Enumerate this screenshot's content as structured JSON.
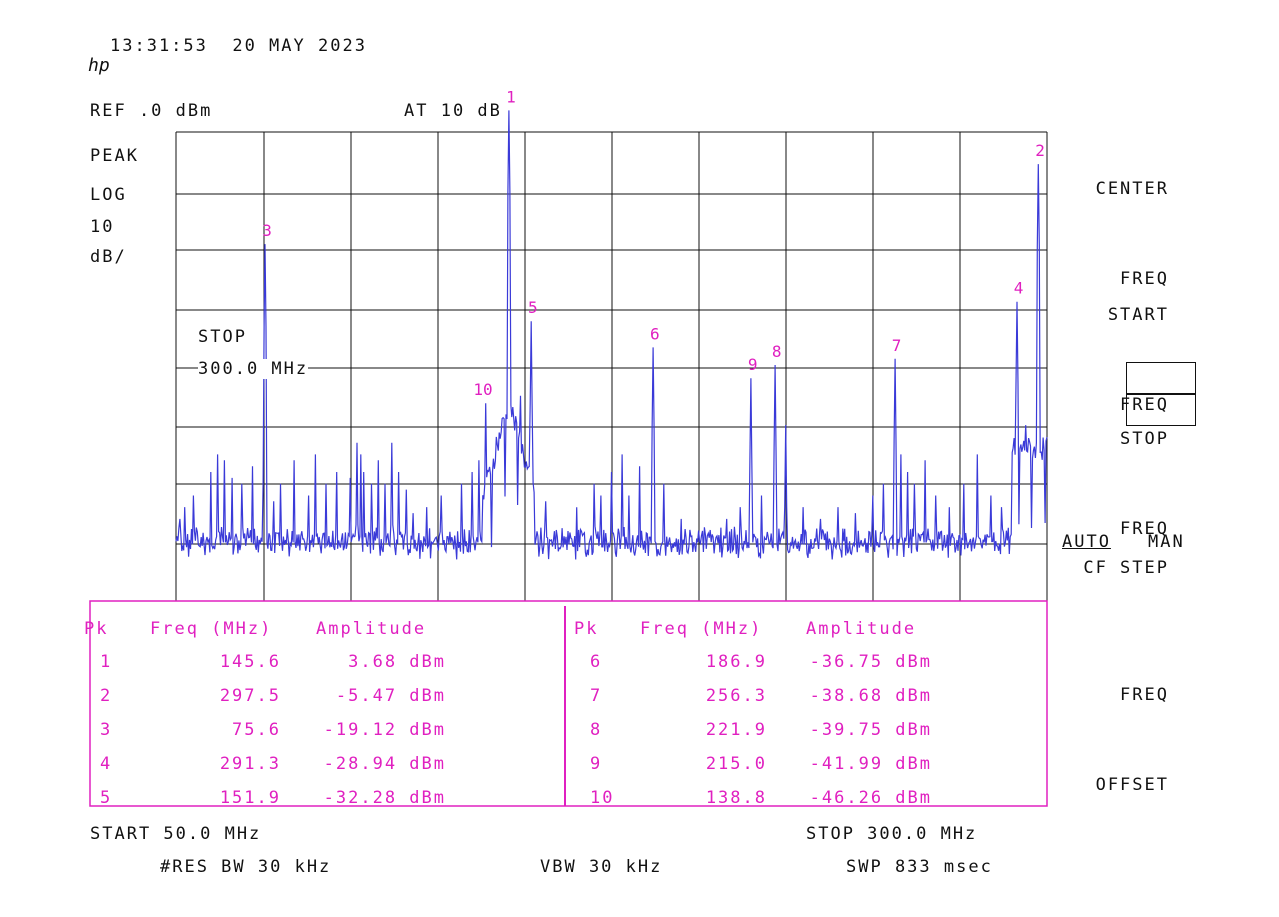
{
  "header": {
    "datetime": "13:31:53  20 MAY 2023",
    "logo": "hp",
    "ref_level": "REF .0 dBm",
    "attenuation": "AT 10 dB",
    "detector": "PEAK",
    "scale_mode": "LOG",
    "scale_value": "10",
    "scale_unit": "dB/"
  },
  "active_function": {
    "label": "STOP",
    "value": "300.0 MHz"
  },
  "softkeys": {
    "center_freq": [
      "CENTER",
      "FREQ"
    ],
    "start_freq": [
      "START",
      "FREQ"
    ],
    "stop_freq": [
      "STOP",
      "FREQ"
    ],
    "cf_step": "CF STEP",
    "cf_auto": "AUTO",
    "cf_man": "MAN",
    "freq_offset": [
      "FREQ",
      "OFFSET"
    ]
  },
  "footer": {
    "start": "START 50.0 MHz",
    "stop": "STOP 300.0 MHz",
    "res_bw": "#RES BW 30 kHz",
    "vbw": "VBW 30 kHz",
    "sweep": "SWP 833 msec"
  },
  "peak_table": {
    "headers": {
      "pk": "Pk",
      "freq": "Freq (MHz)",
      "amp": "Amplitude"
    },
    "rows": [
      {
        "pk": "1",
        "freq": "145.6",
        "amp": "3.68 dBm"
      },
      {
        "pk": "2",
        "freq": "297.5",
        "amp": "-5.47 dBm"
      },
      {
        "pk": "3",
        "freq": "75.6",
        "amp": "-19.12 dBm"
      },
      {
        "pk": "4",
        "freq": "291.3",
        "amp": "-28.94 dBm"
      },
      {
        "pk": "5",
        "freq": "151.9",
        "amp": "-32.28 dBm"
      },
      {
        "pk": "6",
        "freq": "186.9",
        "amp": "-36.75 dBm"
      },
      {
        "pk": "7",
        "freq": "256.3",
        "amp": "-38.68 dBm"
      },
      {
        "pk": "8",
        "freq": "221.9",
        "amp": "-39.75 dBm"
      },
      {
        "pk": "9",
        "freq": "215.0",
        "amp": "-41.99 dBm"
      },
      {
        "pk": "10",
        "freq": "138.8",
        "amp": "-46.26 dBm"
      }
    ]
  },
  "chart_data": {
    "type": "line",
    "x_range_mhz": [
      50,
      300
    ],
    "y_range_dbm": [
      -80,
      0
    ],
    "grid": true,
    "trace_color": "#3a3ad8",
    "marker_color": "#e020c0",
    "noise_floor_dbm": -69,
    "peaks": [
      {
        "label": "1",
        "freq_mhz": 145.6,
        "amp_dbm": 3.68
      },
      {
        "label": "2",
        "freq_mhz": 297.5,
        "amp_dbm": -5.47
      },
      {
        "label": "3",
        "freq_mhz": 75.6,
        "amp_dbm": -19.12
      },
      {
        "label": "4",
        "freq_mhz": 291.3,
        "amp_dbm": -28.94
      },
      {
        "label": "5",
        "freq_mhz": 151.9,
        "amp_dbm": -32.28
      },
      {
        "label": "6",
        "freq_mhz": 186.9,
        "amp_dbm": -36.75
      },
      {
        "label": "7",
        "freq_mhz": 256.3,
        "amp_dbm": -38.68
      },
      {
        "label": "8",
        "freq_mhz": 221.9,
        "amp_dbm": -39.75
      },
      {
        "label": "9",
        "freq_mhz": 215.0,
        "amp_dbm": -41.99
      },
      {
        "label": "10",
        "freq_mhz": 138.8,
        "amp_dbm": -46.26
      }
    ],
    "minor_spurs": [
      [
        51,
        -66
      ],
      [
        52.5,
        -64
      ],
      [
        55,
        -62
      ],
      [
        60,
        -58
      ],
      [
        62,
        -55
      ],
      [
        64,
        -56
      ],
      [
        66,
        -59
      ],
      [
        69,
        -60
      ],
      [
        72,
        -57
      ],
      [
        75,
        -60
      ],
      [
        78,
        -63
      ],
      [
        80,
        -60
      ],
      [
        84,
        -56
      ],
      [
        88,
        -62
      ],
      [
        90,
        -55
      ],
      [
        93,
        -60
      ],
      [
        96,
        -58
      ],
      [
        100,
        -59
      ],
      [
        102,
        -53
      ],
      [
        103,
        -55
      ],
      [
        104,
        -58
      ],
      [
        106,
        -60
      ],
      [
        108,
        -56
      ],
      [
        110,
        -60
      ],
      [
        112,
        -53
      ],
      [
        114,
        -58
      ],
      [
        116,
        -61
      ],
      [
        118,
        -65
      ],
      [
        122,
        -64
      ],
      [
        126,
        -62
      ],
      [
        132,
        -60
      ],
      [
        135,
        -58
      ],
      [
        137,
        -56
      ],
      [
        142,
        -52
      ],
      [
        149,
        -45
      ],
      [
        156,
        -63
      ],
      [
        165,
        -64
      ],
      [
        170,
        -60
      ],
      [
        172,
        -62
      ],
      [
        175,
        -58
      ],
      [
        178,
        -55
      ],
      [
        180,
        -62
      ],
      [
        183,
        -57
      ],
      [
        190,
        -60
      ],
      [
        195,
        -66
      ],
      [
        200,
        -68
      ],
      [
        208,
        -66
      ],
      [
        212,
        -64
      ],
      [
        218,
        -62
      ],
      [
        225,
        -50
      ],
      [
        230,
        -64
      ],
      [
        235,
        -66
      ],
      [
        240,
        -64
      ],
      [
        245,
        -65
      ],
      [
        250,
        -62
      ],
      [
        253,
        -60
      ],
      [
        258,
        -55
      ],
      [
        260,
        -58
      ],
      [
        262,
        -60
      ],
      [
        265,
        -56
      ],
      [
        268,
        -62
      ],
      [
        272,
        -64
      ],
      [
        276,
        -60
      ],
      [
        280,
        -55
      ],
      [
        284,
        -62
      ],
      [
        287,
        -64
      ],
      [
        294,
        -50
      ],
      [
        299,
        -58
      ]
    ]
  }
}
